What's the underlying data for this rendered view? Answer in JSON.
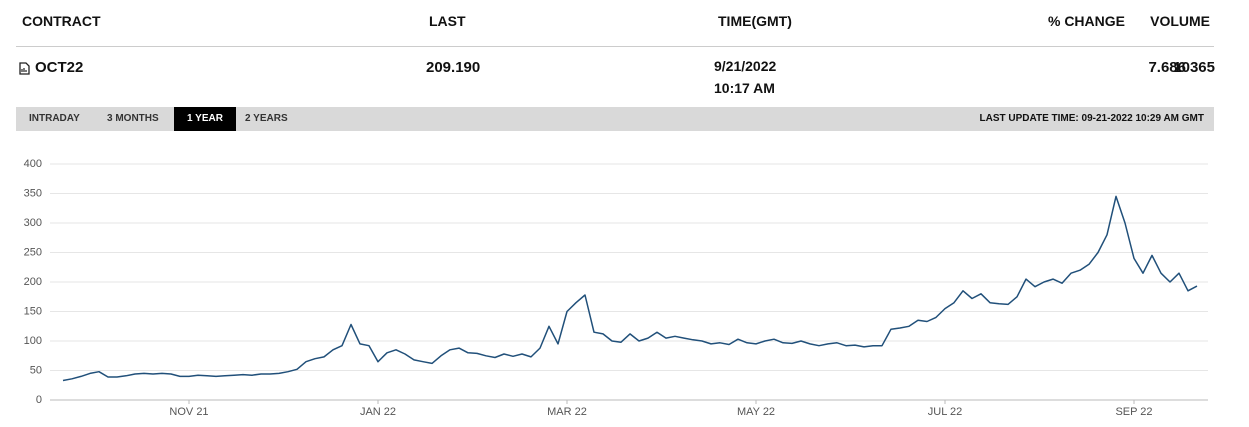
{
  "table": {
    "headers": [
      "CONTRACT",
      "LAST",
      "TIME(GMT)",
      "% CHANGE",
      "VOLUME"
    ],
    "row": {
      "contract": "OCT22",
      "last": "209.190",
      "time": [
        "9/21/2022",
        "10:17 AM"
      ],
      "change": "7.686",
      "volume": "10365"
    }
  },
  "tabs": [
    {
      "label": "INTRADAY"
    },
    {
      "label": "3 MONTHS"
    },
    {
      "label": "1 YEAR",
      "selected": true
    },
    {
      "label": "2 YEARS"
    }
  ],
  "last_update": "LAST UPDATE TIME: 09-21-2022 10:29 AM GMT",
  "chart_data": {
    "type": "line",
    "color": "#21507a",
    "grid": true,
    "categories": [
      null,
      null,
      null,
      null,
      null,
      null,
      null,
      null,
      null,
      null,
      null,
      null,
      null,
      null,
      "NOV 21",
      null,
      null,
      null,
      null,
      null,
      null,
      null,
      null,
      null,
      null,
      null,
      null,
      null,
      null,
      null,
      null,
      null,
      null,
      null,
      null,
      "JAN 22",
      null,
      null,
      null,
      null,
      null,
      null,
      null,
      null,
      null,
      null,
      null,
      null,
      null,
      null,
      null,
      null,
      null,
      null,
      null,
      null,
      "MAR 22",
      null,
      null,
      null,
      null,
      null,
      null,
      null,
      null,
      null,
      null,
      null,
      null,
      null,
      null,
      null,
      null,
      null,
      null,
      null,
      null,
      "MAY 22",
      null,
      null,
      null,
      null,
      null,
      null,
      null,
      null,
      null,
      null,
      null,
      null,
      null,
      null,
      null,
      null,
      null,
      null,
      null,
      null,
      "JUL 22",
      null,
      null,
      null,
      null,
      null,
      null,
      null,
      null,
      null,
      null,
      null,
      null,
      null,
      null,
      null,
      null,
      null,
      null,
      null,
      null,
      "SEP 22",
      null,
      null,
      null,
      null,
      null,
      null,
      null
    ],
    "values": [
      33,
      36,
      40,
      45,
      48,
      39,
      39,
      41,
      44,
      45,
      44,
      45,
      44,
      40,
      40,
      42,
      41,
      40,
      41,
      42,
      43,
      42,
      44,
      44,
      45,
      48,
      52,
      65,
      70,
      73,
      85,
      92,
      128,
      95,
      92,
      65,
      80,
      85,
      78,
      68,
      65,
      62,
      75,
      85,
      88,
      80,
      79,
      75,
      72,
      78,
      74,
      78,
      73,
      88,
      125,
      95,
      150,
      165,
      178,
      115,
      112,
      100,
      98,
      112,
      100,
      105,
      115,
      105,
      108,
      105,
      102,
      100,
      95,
      97,
      94,
      103,
      97,
      95,
      100,
      103,
      97,
      96,
      100,
      95,
      92,
      95,
      97,
      92,
      93,
      90,
      92,
      92,
      120,
      122,
      125,
      135,
      133,
      140,
      155,
      165,
      185,
      172,
      180,
      165,
      163,
      162,
      175,
      205,
      192,
      200,
      205,
      198,
      215,
      220,
      230,
      250,
      280,
      345,
      300,
      240,
      215,
      245,
      215,
      200,
      215,
      185,
      193
    ],
    "ylim": [
      0,
      400
    ],
    "yticks": [
      0,
      50,
      100,
      150,
      200,
      250,
      300,
      350,
      400
    ]
  }
}
